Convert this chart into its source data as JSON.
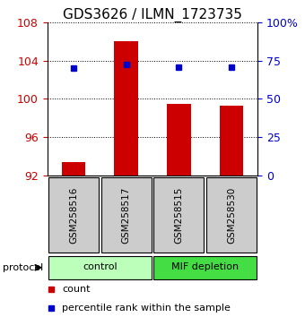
{
  "title": "GDS3626 / ILMN_1723735",
  "samples": [
    "GSM258516",
    "GSM258517",
    "GSM258515",
    "GSM258530"
  ],
  "bar_values": [
    93.4,
    106.0,
    99.5,
    99.3
  ],
  "bar_baseline": 92,
  "percentile_values": [
    70.0,
    72.5,
    70.5,
    70.5
  ],
  "left_ylim": [
    92,
    108
  ],
  "right_ylim": [
    0,
    100
  ],
  "left_yticks": [
    92,
    96,
    100,
    104,
    108
  ],
  "right_yticks": [
    0,
    25,
    50,
    75,
    100
  ],
  "right_yticklabels": [
    "0",
    "25",
    "50",
    "75",
    "100%"
  ],
  "left_ytick_color": "#cc0000",
  "right_ytick_color": "#0000cc",
  "bar_color": "#cc0000",
  "scatter_color": "#0000cc",
  "group_labels": [
    "control",
    "MIF depletion"
  ],
  "group_ranges": [
    [
      0,
      2
    ],
    [
      2,
      4
    ]
  ],
  "group_color_control": "#bbffbb",
  "group_color_mif": "#44dd44",
  "sample_box_color": "#cccccc",
  "legend_count_color": "#cc0000",
  "legend_pct_color": "#0000cc",
  "title_fontsize": 11,
  "tick_fontsize": 9,
  "sample_fontsize": 7.5,
  "group_fontsize": 8,
  "legend_fontsize": 8
}
